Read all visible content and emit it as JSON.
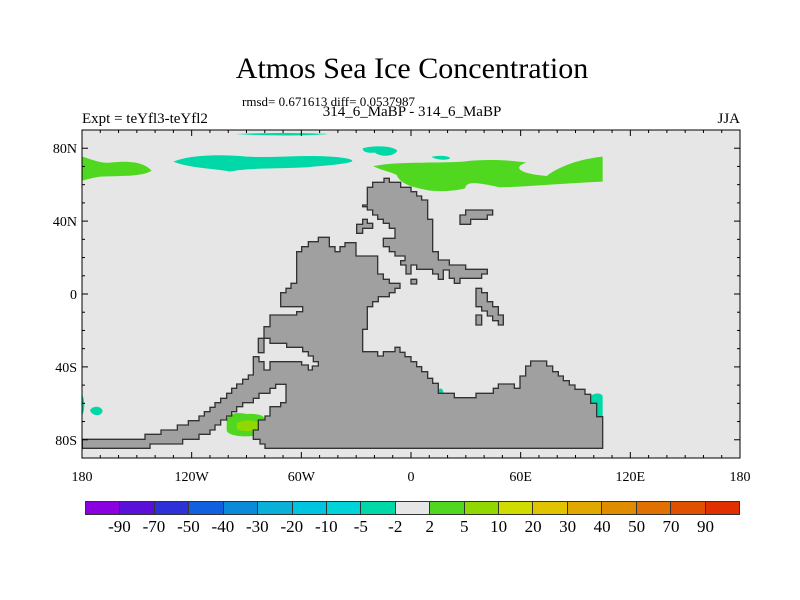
{
  "title": "Atmos Sea Ice Concentration",
  "stats": "rmsd= 0.671613 diff= 0.0537987",
  "center_string": "314_6_MaBP - 314_6_MaBP",
  "left_string": "Expt = teYfl3-teYfl2",
  "right_string": "JJA",
  "map": {
    "ocean_color": "#e6e6e6",
    "land_color": "#a0a0a0",
    "lat_labels": [
      {
        "lat": 80,
        "label": "80N"
      },
      {
        "lat": 40,
        "label": "40N"
      },
      {
        "lat": 0,
        "label": "0"
      },
      {
        "lat": -40,
        "label": "40S"
      },
      {
        "lat": -80,
        "label": "80S"
      }
    ],
    "lon_labels": [
      {
        "lon": -180,
        "label": "180"
      },
      {
        "lon": -120,
        "label": "120W"
      },
      {
        "lon": -60,
        "label": "60W"
      },
      {
        "lon": 0,
        "label": "0"
      },
      {
        "lon": 60,
        "label": "60E"
      },
      {
        "lon": 120,
        "label": "120E"
      },
      {
        "lon": 180,
        "label": "180"
      }
    ],
    "lat_range": [
      -90,
      90
    ],
    "lon_range": [
      -180,
      180
    ]
  },
  "colorbar": {
    "colors": [
      "#8a00e0",
      "#5a10d8",
      "#2e30d8",
      "#1060e0",
      "#0a8ad8",
      "#0ab0d8",
      "#00c4e0",
      "#00d4d8",
      "#00d8a8",
      "#e6e6e6",
      "#50d820",
      "#90d800",
      "#d0dc00",
      "#e0c400",
      "#e0a800",
      "#e08c00",
      "#e07000",
      "#e05000",
      "#e03000"
    ],
    "labels": [
      "-90",
      "-70",
      "-50",
      "-40",
      "-30",
      "-20",
      "-10",
      "-5",
      "-2",
      "2",
      "5",
      "10",
      "20",
      "30",
      "40",
      "50",
      "70",
      "90"
    ]
  }
}
